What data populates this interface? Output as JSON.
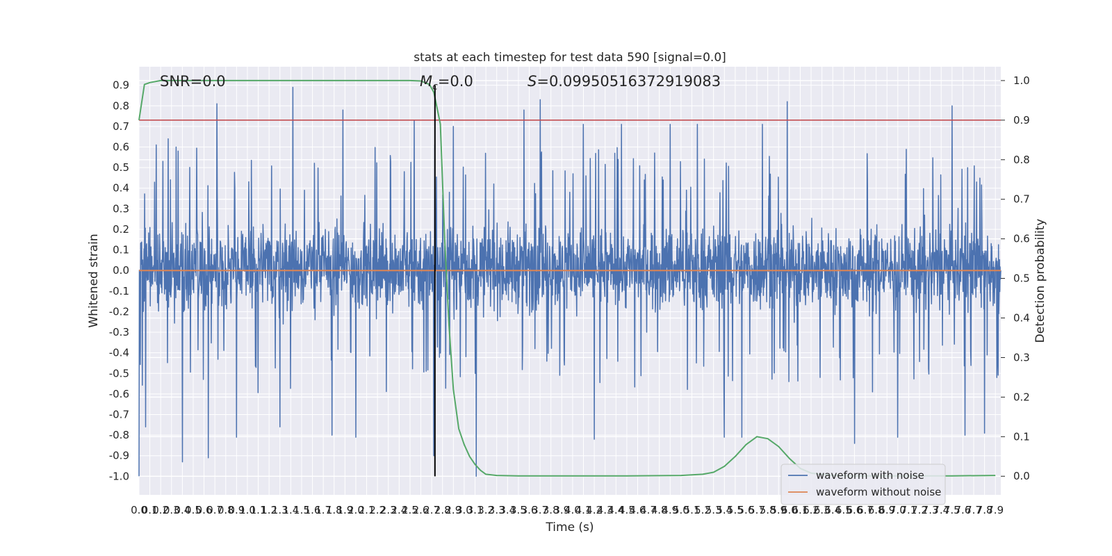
{
  "chart_data": {
    "type": "line",
    "title": "stats at each timestep for test data 590 [signal=0.0]",
    "xlabel": "Time (s)",
    "ylabel_left": "Whitened strain",
    "ylabel_right": "Detection probability",
    "xlim": [
      0.0,
      7.95
    ],
    "ylim_left": [
      -1.09,
      0.99
    ],
    "ylim_right": [
      -0.047,
      1.035
    ],
    "x_ticks": [
      "0.0",
      "0.1",
      "0.2",
      "0.3",
      "0.4",
      "0.5",
      "0.6",
      "0.7",
      "0.8",
      "0.9",
      "1.0",
      "1.1",
      "1.2",
      "1.3",
      "1.4",
      "1.5",
      "1.6",
      "1.7",
      "1.8",
      "1.9",
      "2.0",
      "2.1",
      "2.2",
      "2.3",
      "2.4",
      "2.5",
      "2.6",
      "2.7",
      "2.8",
      "2.9",
      "3.0",
      "3.1",
      "3.2",
      "3.3",
      "3.4",
      "3.5",
      "3.6",
      "3.7",
      "3.8",
      "3.9",
      "4.0",
      "4.1",
      "4.2",
      "4.3",
      "4.4",
      "4.5",
      "4.6",
      "4.7",
      "4.8",
      "4.9",
      "5.0",
      "5.1",
      "5.2",
      "5.3",
      "5.4",
      "5.5",
      "5.6",
      "5.7",
      "5.8",
      "5.9",
      "6.0",
      "6.1",
      "6.2",
      "6.3",
      "6.4",
      "6.5",
      "6.6",
      "6.7",
      "6.8",
      "6.9",
      "7.0",
      "7.1",
      "7.2",
      "7.3",
      "7.4",
      "7.5",
      "7.6",
      "7.7",
      "7.8",
      "7.9"
    ],
    "y_ticks_left": [
      "0.9",
      "0.8",
      "0.7",
      "0.6",
      "0.5",
      "0.4",
      "0.3",
      "0.2",
      "0.1",
      "0.0",
      "-0.1",
      "-0.2",
      "-0.3",
      "-0.4",
      "-0.5",
      "-0.6",
      "-0.7",
      "-0.8",
      "-0.9",
      "-1.0"
    ],
    "y_ticks_right": [
      "1.0",
      "0.9",
      "0.8",
      "0.7",
      "0.6",
      "0.5",
      "0.4",
      "0.3",
      "0.2",
      "0.1",
      "0.0"
    ],
    "annotations": {
      "snr": "SNR=0.0",
      "mc_symbol": "M",
      "mc_sub": "c",
      "mc_value": "=0.0",
      "s_symbol": "S",
      "s_value": "=0.09950516372919083"
    },
    "series": [
      {
        "name": "waveform with noise",
        "color": "#4c72b0",
        "axis": "left",
        "description": "dense whitened-strain noise between about -1.0 and 0.9",
        "envelope": {
          "core_range": [
            -0.25,
            0.32
          ],
          "peaks": [
            [
              0.06,
              0.61
            ],
            [
              0.16,
              0.61
            ],
            [
              0.27,
              0.64
            ],
            [
              0.36,
              0.58
            ],
            [
              0.72,
              0.81
            ],
            [
              1.3,
              0.83
            ],
            [
              1.42,
              0.89
            ],
            [
              1.88,
              0.78
            ],
            [
              2.54,
              0.73
            ],
            [
              2.73,
              0.61
            ],
            [
              2.9,
              0.7
            ],
            [
              3.55,
              0.78
            ],
            [
              3.7,
              0.83
            ],
            [
              4.1,
              0.71
            ],
            [
              4.45,
              0.71
            ],
            [
              4.9,
              0.71
            ],
            [
              5.15,
              0.71
            ],
            [
              5.75,
              0.71
            ],
            [
              5.98,
              0.82
            ],
            [
              6.6,
              0.71
            ],
            [
              7.5,
              0.8
            ],
            [
              7.62,
              0.78
            ]
          ],
          "troughs": [
            [
              0.0,
              -1.0
            ],
            [
              0.06,
              -0.76
            ],
            [
              0.4,
              -0.93
            ],
            [
              0.64,
              -0.91
            ],
            [
              0.9,
              -0.81
            ],
            [
              1.3,
              -0.76
            ],
            [
              1.78,
              -0.8
            ],
            [
              2.0,
              -0.81
            ],
            [
              2.72,
              -0.9
            ],
            [
              3.11,
              -1.0
            ],
            [
              4.2,
              -0.82
            ],
            [
              5.4,
              -0.81
            ],
            [
              5.56,
              -0.81
            ],
            [
              6.6,
              -0.84
            ],
            [
              7.0,
              -0.81
            ],
            [
              7.62,
              -0.8
            ],
            [
              7.8,
              -0.79
            ]
          ]
        }
      },
      {
        "name": "waveform without noise",
        "color": "#dd8452",
        "axis": "left",
        "x": [
          0.0,
          7.95
        ],
        "y": [
          0.0,
          0.0
        ]
      },
      {
        "color": "#55a868",
        "axis": "right",
        "x": [
          0.0,
          0.05,
          0.1,
          0.2,
          0.4,
          1.0,
          2.0,
          2.5,
          2.6,
          2.68,
          2.72,
          2.78,
          2.82,
          2.86,
          2.9,
          2.95,
          3.0,
          3.05,
          3.1,
          3.15,
          3.2,
          3.3,
          3.5,
          4.0,
          4.5,
          5.0,
          5.2,
          5.3,
          5.4,
          5.5,
          5.6,
          5.7,
          5.8,
          5.9,
          6.0,
          6.1,
          6.2,
          6.4,
          6.6,
          6.8,
          7.0,
          7.5,
          7.9
        ],
        "y": [
          0.9,
          0.99,
          0.995,
          1.0,
          1.0,
          1.0,
          1.0,
          1.0,
          0.999,
          0.99,
          0.97,
          0.89,
          0.6,
          0.38,
          0.22,
          0.12,
          0.08,
          0.05,
          0.03,
          0.015,
          0.005,
          0.002,
          0.001,
          0.001,
          0.001,
          0.002,
          0.005,
          0.01,
          0.025,
          0.05,
          0.08,
          0.1,
          0.095,
          0.075,
          0.045,
          0.02,
          0.008,
          0.002,
          0.001,
          0.001,
          0.001,
          0.001,
          0.002
        ]
      },
      {
        "color": "#c44e52",
        "axis": "right",
        "type": "hline",
        "y": 0.9
      },
      {
        "color": "#000000",
        "axis": "left",
        "type": "vline",
        "x": 2.73,
        "ylim": [
          -1.0,
          0.9
        ]
      }
    ],
    "legend": {
      "placement": "lower right",
      "entries": [
        "waveform with noise",
        "waveform without noise"
      ]
    },
    "grid": true,
    "background_color": "#eaeaf2",
    "grid_color": "#ffffff"
  }
}
